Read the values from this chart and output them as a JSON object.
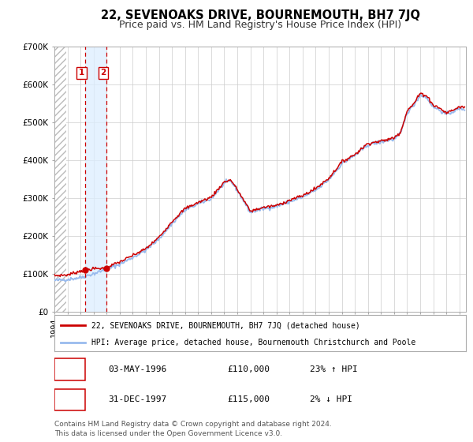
{
  "title": "22, SEVENOAKS DRIVE, BOURNEMOUTH, BH7 7JQ",
  "subtitle": "Price paid vs. HM Land Registry's House Price Index (HPI)",
  "legend_line1": "22, SEVENOAKS DRIVE, BOURNEMOUTH, BH7 7JQ (detached house)",
  "legend_line2": "HPI: Average price, detached house, Bournemouth Christchurch and Poole",
  "footer1": "Contains HM Land Registry data © Crown copyright and database right 2024.",
  "footer2": "This data is licensed under the Open Government Licence v3.0.",
  "xlim": [
    1994.0,
    2025.5
  ],
  "ylim": [
    0,
    700000
  ],
  "yticks": [
    0,
    100000,
    200000,
    300000,
    400000,
    500000,
    600000,
    700000
  ],
  "ytick_labels": [
    "£0",
    "£100K",
    "£200K",
    "£300K",
    "£400K",
    "£500K",
    "£600K",
    "£700K"
  ],
  "sale1_x": 1996.34,
  "sale1_y": 110000,
  "sale1_date": "03-MAY-1996",
  "sale1_price": "£110,000",
  "sale1_hpi": "23% ↑ HPI",
  "sale2_x": 1997.99,
  "sale2_y": 115000,
  "sale2_date": "31-DEC-1997",
  "sale2_price": "£115,000",
  "sale2_hpi": "2% ↓ HPI",
  "hatch_end": 1994.9,
  "shade_start": 1996.34,
  "shade_end": 1997.99,
  "red_line_color": "#cc0000",
  "blue_line_color": "#99bbee",
  "hatch_color": "#cccccc",
  "shade_color": "#ddeeff",
  "background_color": "#ffffff",
  "grid_color": "#cccccc",
  "title_fontsize": 10.5,
  "subtitle_fontsize": 9,
  "axis_fontsize": 7.5,
  "footer_fontsize": 6.5
}
